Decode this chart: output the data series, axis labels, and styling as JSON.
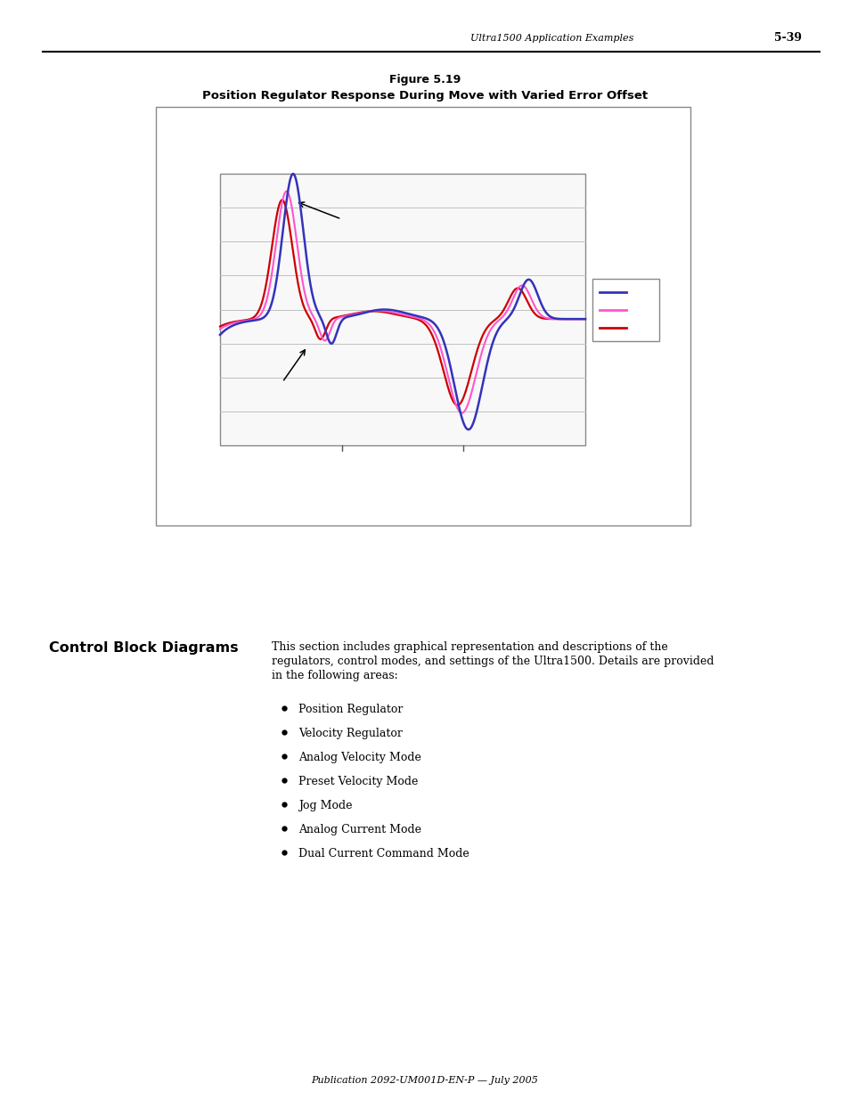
{
  "page_title": "Ultra1500 Application Examples",
  "page_number": "5-39",
  "figure_title_line1": "Figure 5.19",
  "figure_title_line2": "Position Regulator Response During Move with Varied Error Offset",
  "section_heading": "Control Block Diagrams",
  "section_body_line1": "This section includes graphical representation and descriptions of the",
  "section_body_line2": "regulators, control modes, and settings of the Ultra1500. Details are provided",
  "section_body_line3": "in the following areas:",
  "bullet_items": [
    "Position Regulator",
    "Velocity Regulator",
    "Analog Velocity Mode",
    "Preset Velocity Mode",
    "Jog Mode",
    "Analog Current Mode",
    "Dual Current Command Mode"
  ],
  "footer": "Publication 2092-UM001D-EN-P — July 2005",
  "line1_color": "#3333bb",
  "line2_color": "#ff55cc",
  "line3_color": "#cc0000",
  "bg_color": "#ffffff"
}
